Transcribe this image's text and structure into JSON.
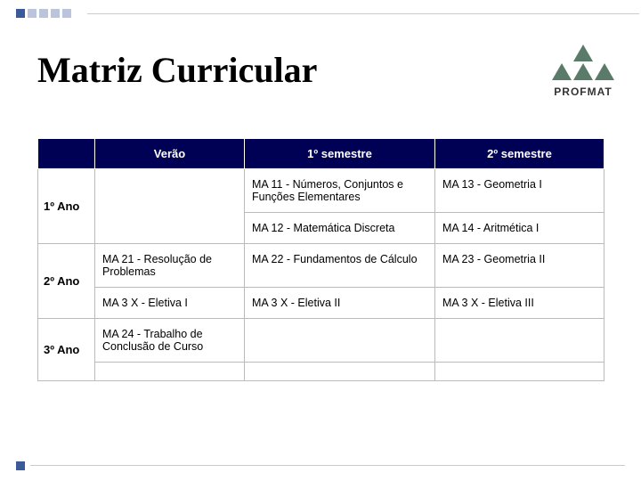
{
  "title": "Matriz Curricular",
  "logo_text": "PROFMAT",
  "headers": {
    "col1": "Verão",
    "col2": "1º semestre",
    "col3": "2º semestre"
  },
  "rows": {
    "year1": {
      "label": "1º Ano",
      "verao_a": "",
      "sem1_a": "MA 11 - Números, Conjuntos e Funções Elementares",
      "sem2_a": "MA 13 - Geometria I",
      "verao_b": "",
      "sem1_b": "MA 12 - Matemática Discreta",
      "sem2_b": "MA 14 - Aritmética I"
    },
    "year2": {
      "label": "2º Ano",
      "verao_a": "MA 21 - Resolução de Problemas",
      "sem1_a": "MA 22 - Fundamentos de Cálculo",
      "sem2_a": "MA 23 - Geometria II",
      "verao_b": "MA 3 X - Eletiva I",
      "sem1_b": "MA 3 X - Eletiva II",
      "sem2_b": "MA 3 X - Eletiva III"
    },
    "year3": {
      "label": "3º Ano",
      "verao_a": "MA 24 - Trabalho de Conclusão de Curso",
      "sem1_a": "",
      "sem2_a": ""
    }
  },
  "colors": {
    "header_bg": "#000055",
    "header_fg": "#ffffff",
    "cell_border": "#bbbbbb",
    "text": "#000000",
    "accent": "#3a5a9a",
    "logo_tri": "#5a7a6a"
  }
}
